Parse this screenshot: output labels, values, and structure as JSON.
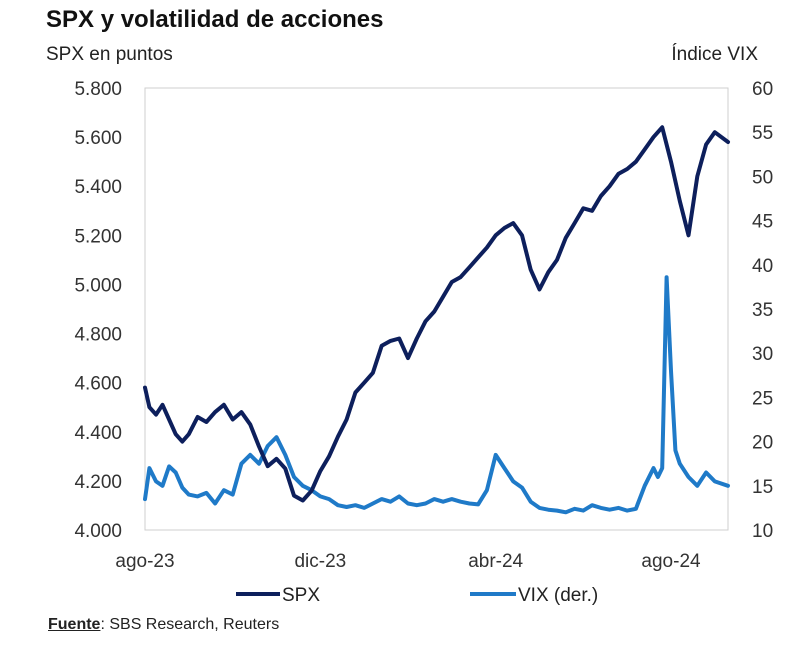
{
  "chart_data": {
    "type": "line",
    "title": "SPX y volatilidad de acciones",
    "ylabel_left": "SPX en puntos",
    "ylabel_right": "Índice VIX",
    "ylim_left": [
      4000,
      5800
    ],
    "ylim_right": [
      10,
      60
    ],
    "left_ticks": [
      "5.800",
      "5.600",
      "5.400",
      "5.200",
      "5.000",
      "4.800",
      "4.600",
      "4.400",
      "4.200",
      "4.000"
    ],
    "left_tick_values": [
      5800,
      5600,
      5400,
      5200,
      5000,
      4800,
      4600,
      4400,
      4200,
      4000
    ],
    "right_ticks": [
      "60",
      "55",
      "50",
      "45",
      "40",
      "35",
      "30",
      "25",
      "20",
      "15",
      "10"
    ],
    "right_tick_values": [
      60,
      55,
      50,
      45,
      40,
      35,
      30,
      25,
      20,
      15,
      10
    ],
    "x_ticks": [
      "ago-23",
      "dic-23",
      "abr-24",
      "ago-24"
    ],
    "x_tick_positions": [
      0,
      4,
      8,
      12
    ],
    "x_range": [
      0,
      13.3
    ],
    "series": [
      {
        "name": "SPX",
        "axis": "left",
        "color": "#0d1f5c",
        "x": [
          0,
          0.1,
          0.25,
          0.4,
          0.55,
          0.7,
          0.85,
          1.0,
          1.2,
          1.4,
          1.6,
          1.8,
          2.0,
          2.2,
          2.4,
          2.6,
          2.8,
          3.0,
          3.2,
          3.4,
          3.6,
          3.8,
          4.0,
          4.2,
          4.4,
          4.6,
          4.8,
          5.0,
          5.2,
          5.4,
          5.6,
          5.8,
          6.0,
          6.2,
          6.4,
          6.6,
          6.8,
          7.0,
          7.2,
          7.4,
          7.6,
          7.8,
          8.0,
          8.2,
          8.4,
          8.6,
          8.8,
          9.0,
          9.2,
          9.4,
          9.6,
          9.8,
          10.0,
          10.2,
          10.4,
          10.6,
          10.8,
          11.0,
          11.2,
          11.4,
          11.6,
          11.8,
          12.0,
          12.2,
          12.4,
          12.6,
          12.8,
          13.0,
          13.3
        ],
        "values": [
          4580,
          4500,
          4470,
          4510,
          4450,
          4390,
          4360,
          4390,
          4460,
          4440,
          4480,
          4510,
          4450,
          4480,
          4430,
          4340,
          4260,
          4290,
          4250,
          4140,
          4120,
          4160,
          4240,
          4300,
          4380,
          4450,
          4560,
          4600,
          4640,
          4750,
          4770,
          4780,
          4700,
          4780,
          4850,
          4890,
          4950,
          5010,
          5030,
          5070,
          5110,
          5150,
          5200,
          5230,
          5250,
          5200,
          5060,
          4980,
          5050,
          5100,
          5190,
          5250,
          5310,
          5300,
          5360,
          5400,
          5450,
          5470,
          5500,
          5550,
          5600,
          5640,
          5500,
          5340,
          5200,
          5440,
          5570,
          5620,
          5580
        ]
      },
      {
        "name": "VIX (der.)",
        "axis": "right",
        "color": "#1f7ac8",
        "x": [
          0,
          0.1,
          0.25,
          0.4,
          0.55,
          0.7,
          0.85,
          1.0,
          1.2,
          1.4,
          1.6,
          1.8,
          2.0,
          2.2,
          2.4,
          2.6,
          2.8,
          3.0,
          3.2,
          3.4,
          3.6,
          3.8,
          4.0,
          4.2,
          4.4,
          4.6,
          4.8,
          5.0,
          5.2,
          5.4,
          5.6,
          5.8,
          6.0,
          6.2,
          6.4,
          6.6,
          6.8,
          7.0,
          7.2,
          7.4,
          7.6,
          7.8,
          8.0,
          8.2,
          8.4,
          8.6,
          8.8,
          9.0,
          9.2,
          9.4,
          9.6,
          9.8,
          10.0,
          10.2,
          10.4,
          10.6,
          10.8,
          11.0,
          11.2,
          11.4,
          11.6,
          11.7,
          11.8,
          11.9,
          12.0,
          12.1,
          12.2,
          12.4,
          12.6,
          12.8,
          13.0,
          13.3
        ],
        "values": [
          13.5,
          17.0,
          15.5,
          15.0,
          17.2,
          16.5,
          14.8,
          14.0,
          13.8,
          14.2,
          13.0,
          14.5,
          14.0,
          17.5,
          18.5,
          17.5,
          19.5,
          20.5,
          18.5,
          16.0,
          15.0,
          14.5,
          13.8,
          13.5,
          12.8,
          12.6,
          12.8,
          12.5,
          13.0,
          13.5,
          13.2,
          13.8,
          13.0,
          12.8,
          13.0,
          13.5,
          13.2,
          13.5,
          13.2,
          13.0,
          12.9,
          14.5,
          18.5,
          17.0,
          15.5,
          14.8,
          13.2,
          12.5,
          12.3,
          12.2,
          12.0,
          12.4,
          12.2,
          12.8,
          12.5,
          12.3,
          12.5,
          12.2,
          12.4,
          15.0,
          17.0,
          16.0,
          17.0,
          38.6,
          28.0,
          19.0,
          17.5,
          16.0,
          15.0,
          16.5,
          15.5,
          15.0
        ]
      }
    ],
    "legend": [
      {
        "label": "SPX",
        "color": "#0d1f5c"
      },
      {
        "label": "VIX (der.)",
        "color": "#1f7ac8"
      }
    ],
    "legend_position": "bottom-center"
  },
  "source": {
    "label": "Fuente",
    "text": ": SBS Research, Reuters"
  }
}
